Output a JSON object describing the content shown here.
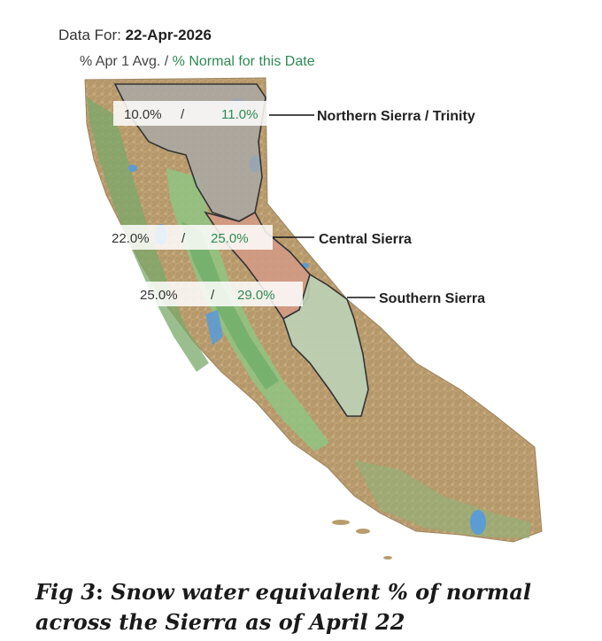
{
  "header": {
    "data_for_label": "Data For:",
    "data_for_date": "22-Apr-2026",
    "legend_part1": "% Apr 1 Avg. / ",
    "legend_part2": "% Normal for this Date"
  },
  "regions": [
    {
      "name": "Northern Sierra / Trinity",
      "pct_apr1": "10.0%",
      "pct_normal": "11.0%",
      "fill_color": "#a9a9a9"
    },
    {
      "name": "Central Sierra",
      "pct_apr1": "22.0%",
      "pct_normal": "25.0%",
      "fill_color": "#d49a86"
    },
    {
      "name": "Southern Sierra",
      "pct_apr1": "25.0%",
      "pct_normal": "29.0%",
      "fill_color": "#bcd2b6"
    }
  ],
  "separator": "/",
  "colors": {
    "normal_text": "#2e8a55",
    "apr1_text": "#333333",
    "land_tan": "#b99c6e",
    "valley_green": "#86b879",
    "water_blue": "#5c9bd4"
  },
  "caption": {
    "prefix": "Fig 3",
    "colon": ":",
    "text": " Snow water equivalent % of normal across the Sierra as of April 22"
  }
}
